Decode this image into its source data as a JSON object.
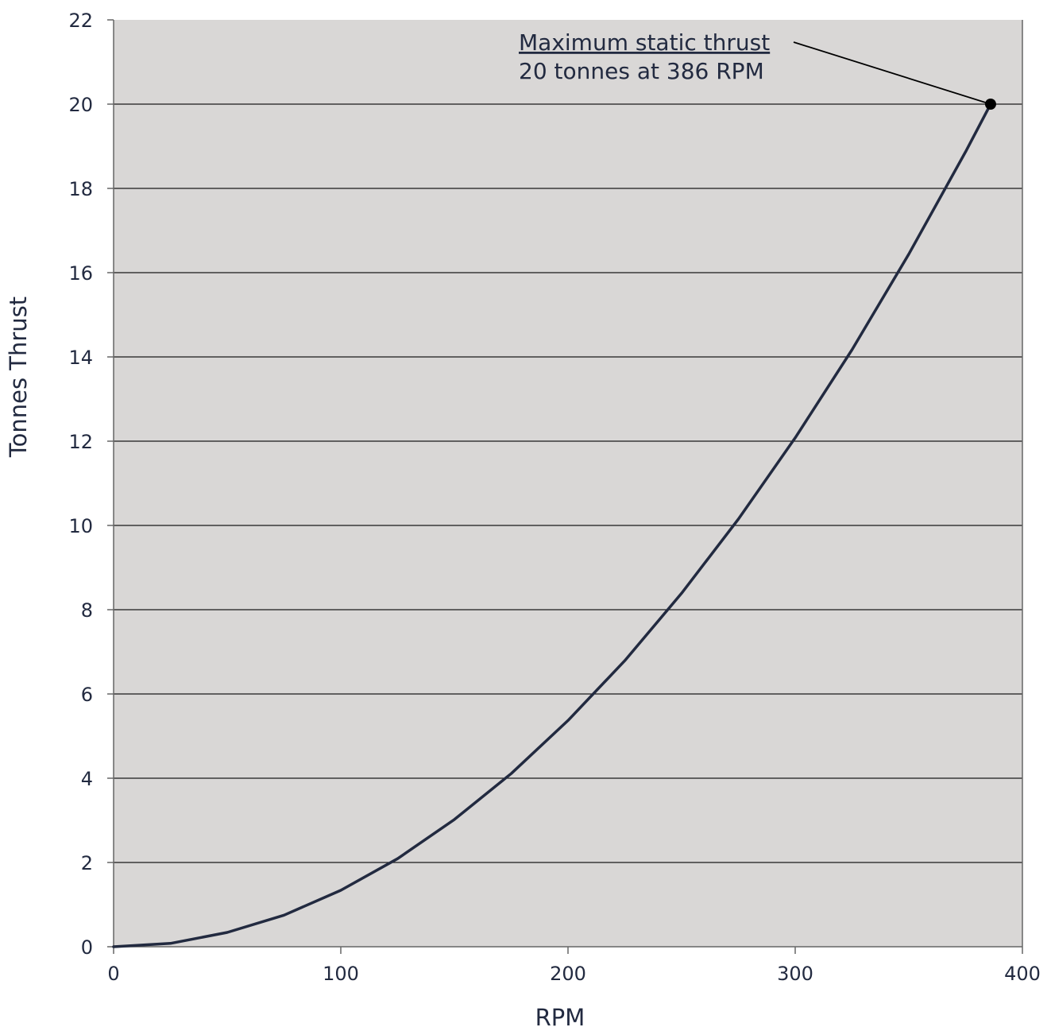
{
  "chart_data": {
    "type": "line",
    "title": "",
    "xlabel": "RPM",
    "ylabel": "Tonnes Thrust",
    "xlim": [
      0,
      400
    ],
    "ylim": [
      0,
      22
    ],
    "x_ticks": [
      0,
      100,
      200,
      300,
      400
    ],
    "y_ticks": [
      0,
      2,
      4,
      6,
      8,
      10,
      12,
      14,
      16,
      18,
      20,
      22
    ],
    "grid": "horizontal",
    "legend": "none",
    "series": [
      {
        "x": [
          0,
          25,
          50,
          75,
          100,
          125,
          150,
          175,
          200,
          225,
          250,
          275,
          300,
          325,
          350,
          375,
          386
        ],
        "y": [
          0,
          0.08,
          0.34,
          0.75,
          1.34,
          2.09,
          3.02,
          4.11,
          5.37,
          6.79,
          8.39,
          10.15,
          12.08,
          14.17,
          16.44,
          18.87,
          20.0
        ],
        "color": "#222a40"
      }
    ],
    "annotation": {
      "title": "Maximum static thrust",
      "text": "20 tonnes at 386 RPM",
      "x": 386,
      "y": 20
    },
    "plot_background": "#d9d7d6"
  }
}
